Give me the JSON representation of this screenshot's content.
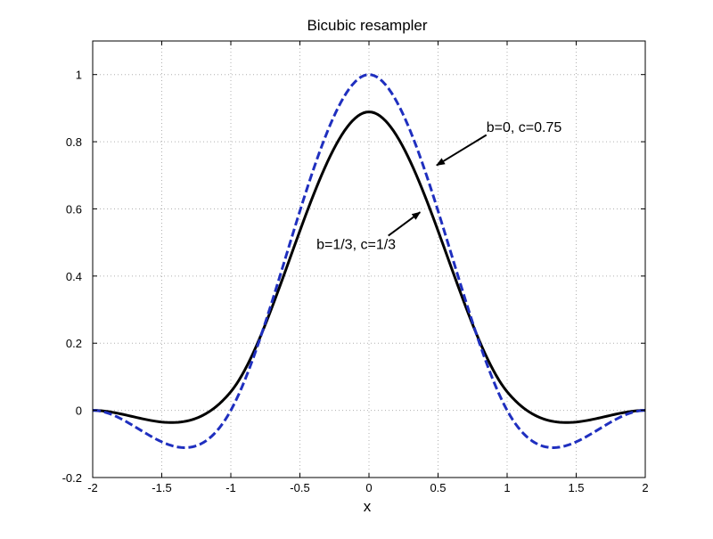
{
  "chart_data": {
    "type": "line",
    "title": "Bicubic resampler",
    "xlabel": "x",
    "ylabel": "",
    "xlim": [
      -2,
      2
    ],
    "ylim": [
      -0.2,
      1.1
    ],
    "grid": true,
    "x_ticks": [
      -2,
      -1.5,
      -1,
      -0.5,
      0,
      0.5,
      1,
      1.5,
      2
    ],
    "x_tick_labels": [
      "-2",
      "-1.5",
      "-1",
      "-0.5",
      "0",
      "0.5",
      "1",
      "1.5",
      "2"
    ],
    "y_ticks": [
      -0.2,
      0,
      0.2,
      0.4,
      0.6,
      0.8,
      1
    ],
    "y_tick_labels": [
      "-0.2",
      "0",
      "0.2",
      "0.4",
      "0.6",
      "0.8",
      "1"
    ],
    "series": [
      {
        "color": "#000000",
        "style": "solid",
        "kernel": {
          "b": 0.3333333,
          "c": 0.3333333
        },
        "x": [
          -2,
          -1.9,
          -1.8,
          -1.7,
          -1.6,
          -1.5,
          -1.4,
          -1.3,
          -1.2,
          -1.1,
          -1,
          -0.9,
          -0.8,
          -0.7,
          -0.6,
          -0.5,
          -0.4,
          -0.3,
          -0.2,
          -0.1,
          0,
          0.1,
          0.2,
          0.3,
          0.4,
          0.5,
          0.6,
          0.7,
          0.8,
          0.9,
          1,
          1.1,
          1.2,
          1.3,
          1.4,
          1.5,
          1.6,
          1.7,
          1.8,
          1.9,
          2
        ],
        "y": [
          0,
          -0.003,
          -0.011,
          -0.02,
          -0.028,
          -0.031,
          -0.03,
          -0.02,
          0.0,
          0.03,
          0.056,
          0.104,
          0.166,
          0.237,
          0.316,
          0.403,
          0.492,
          0.581,
          0.676,
          0.755,
          0.889,
          0.862,
          0.799,
          0.695,
          0.573,
          0.466,
          0.345,
          0.263,
          0.175,
          0.09,
          0.056,
          0.016,
          -0.004,
          -0.022,
          -0.031,
          -0.031,
          -0.028,
          -0.02,
          -0.011,
          -0.003,
          0
        ]
      },
      {
        "color": "#1f2fbf",
        "style": "dashed",
        "kernel": {
          "b": 0,
          "c": 0.75
        },
        "x": [
          -2,
          -1.9,
          -1.8,
          -1.7,
          -1.6,
          -1.5,
          -1.4,
          -1.3,
          -1.2,
          -1.1,
          -1,
          -0.9,
          -0.8,
          -0.7,
          -0.6,
          -0.5,
          -0.4,
          -0.3,
          -0.2,
          -0.1,
          0,
          0.1,
          0.2,
          0.3,
          0.4,
          0.5,
          0.6,
          0.7,
          0.8,
          0.9,
          1,
          1.1,
          1.2,
          1.3,
          1.4,
          1.5,
          1.6,
          1.7,
          1.8,
          1.9,
          2
        ],
        "y": [
          0,
          -0.007,
          -0.024,
          -0.049,
          -0.072,
          -0.094,
          -0.108,
          -0.111,
          -0.096,
          -0.068,
          0,
          0.061,
          0.188,
          0.322,
          0.478,
          0.594,
          0.702,
          0.823,
          0.938,
          0.98,
          1.0,
          0.98,
          0.938,
          0.823,
          0.702,
          0.594,
          0.478,
          0.322,
          0.188,
          0.061,
          0,
          -0.068,
          -0.096,
          -0.111,
          -0.108,
          -0.094,
          -0.072,
          -0.049,
          -0.024,
          -0.007,
          0
        ]
      }
    ],
    "annotations": [
      {
        "text": "b=0, c=0.75",
        "text_x": 0.85,
        "text_y": 0.83,
        "arrow_from": [
          0.85,
          0.82
        ],
        "arrow_to": [
          0.49,
          0.73
        ]
      },
      {
        "text": "b=1/3, c=1/3",
        "text_x": -0.38,
        "text_y": 0.48,
        "arrow_from": [
          0.14,
          0.52
        ],
        "arrow_to": [
          0.37,
          0.59
        ]
      }
    ]
  }
}
